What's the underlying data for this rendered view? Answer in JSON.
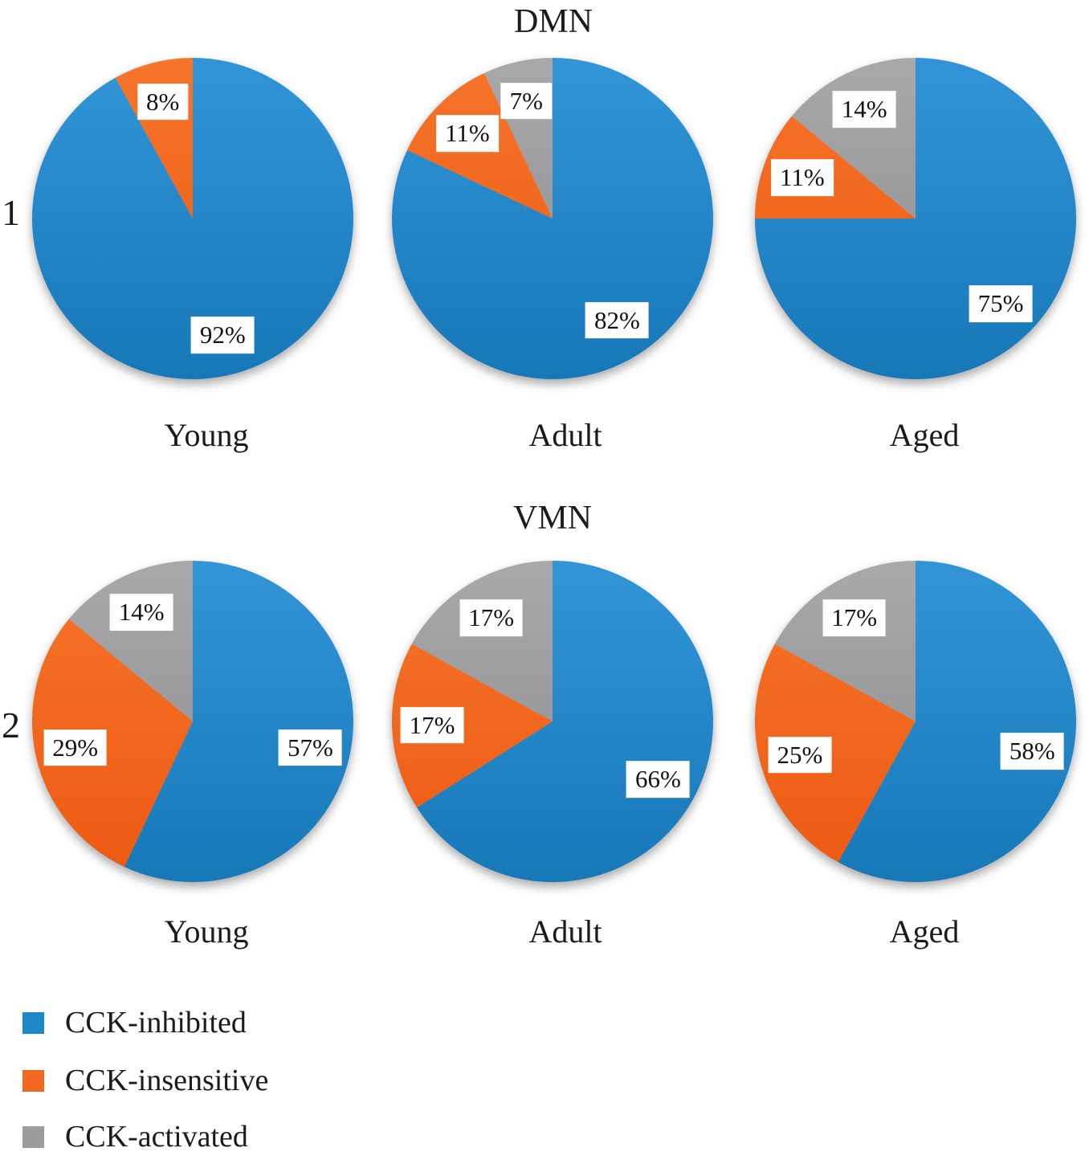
{
  "page": {
    "background": "#ffffff"
  },
  "chart_data": [
    {
      "type": "pie",
      "group_number": "1",
      "title": "DMN",
      "categories": [
        "Young",
        "Adult",
        "Aged"
      ],
      "series": [
        {
          "name": "CCK-inhibited",
          "color_key": "cck_inhibited",
          "values": [
            92,
            82,
            75
          ]
        },
        {
          "name": "CCK-insensitive",
          "color_key": "cck_insensitive",
          "values": [
            8,
            11,
            11
          ]
        },
        {
          "name": "CCK-activated",
          "color_key": "cck_activated",
          "values": [
            0,
            7,
            14
          ]
        }
      ],
      "value_suffix": "%",
      "slice_start": "top",
      "slice_direction": "clockwise"
    },
    {
      "type": "pie",
      "group_number": "2",
      "title": "VMN",
      "categories": [
        "Young",
        "Adult",
        "Aged"
      ],
      "series": [
        {
          "name": "CCK-inhibited",
          "color_key": "cck_inhibited",
          "values": [
            57,
            66,
            58
          ]
        },
        {
          "name": "CCK-insensitive",
          "color_key": "cck_insensitive",
          "values": [
            29,
            17,
            25
          ]
        },
        {
          "name": "CCK-activated",
          "color_key": "cck_activated",
          "values": [
            14,
            17,
            17
          ]
        }
      ],
      "value_suffix": "%",
      "slice_start": "top",
      "slice_direction": "clockwise"
    }
  ],
  "palette": {
    "cck_inhibited": {
      "base": "#1E88C9",
      "top": "#3295D7",
      "bottom": "#1778B8"
    },
    "cck_insensitive": {
      "base": "#F26721",
      "top": "#F5752A",
      "bottom": "#EE5912"
    },
    "cck_activated": {
      "base": "#9C9C9E",
      "top": "#A9A9AB",
      "bottom": "#8B8B8D"
    }
  },
  "legend": {
    "position": "bottom-left",
    "items": [
      {
        "label": "CCK-inhibited",
        "color_key": "cck_inhibited"
      },
      {
        "label": "CCK-insensitive",
        "color_key": "cck_insensitive"
      },
      {
        "label": "CCK-activated",
        "color_key": "cck_activated"
      }
    ]
  }
}
